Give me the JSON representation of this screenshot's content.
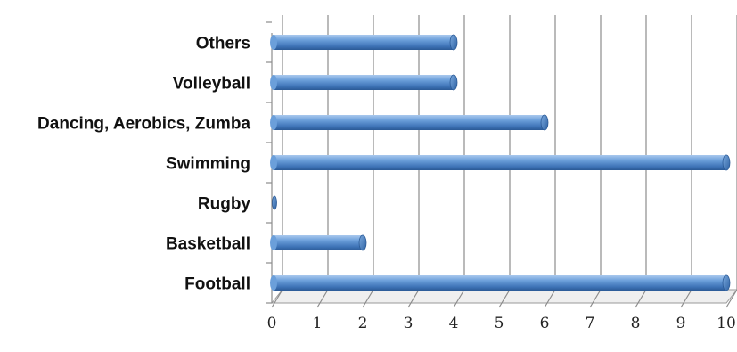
{
  "chart_data": {
    "type": "bar",
    "orientation": "horizontal",
    "categories": [
      "Football",
      "Basketball",
      "Rugby",
      "Swimming",
      "Dancing, Aerobics, Zumba",
      "Volleyball",
      "Others"
    ],
    "values": [
      10,
      2,
      0,
      10,
      6,
      4,
      4
    ],
    "x_ticks": [
      "0",
      "1",
      "2",
      "3",
      "4",
      "5",
      "6",
      "7",
      "8",
      "9",
      "10"
    ],
    "xlim": [
      0,
      10
    ],
    "grid": true,
    "legend": "none",
    "style": "3d-cylinder",
    "bar_color": "#4f86c6",
    "title": "",
    "xlabel": "",
    "ylabel": ""
  }
}
